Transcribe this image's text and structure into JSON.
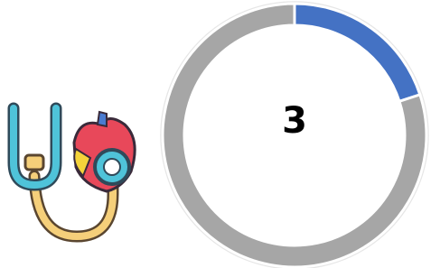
{
  "chart_data": {
    "type": "donut",
    "center_text": "3",
    "values": [
      20,
      80
    ],
    "colors": [
      "#4472c4",
      "#a6a6a6"
    ]
  }
}
